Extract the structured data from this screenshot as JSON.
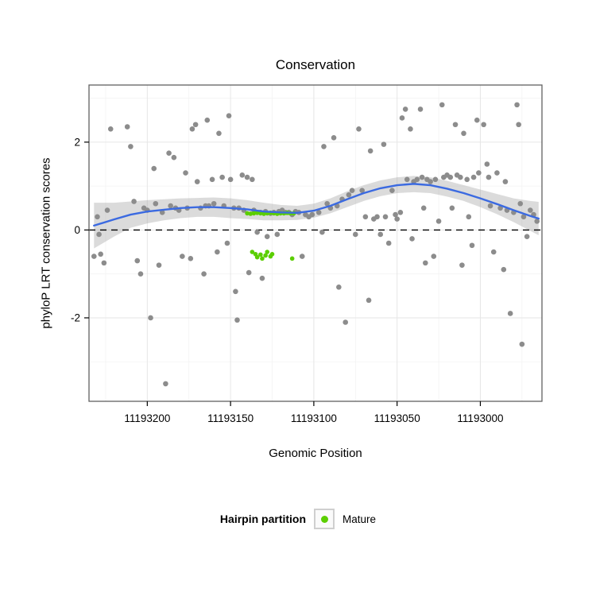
{
  "chart_data": {
    "type": "scatter",
    "title": "Conservation",
    "xlabel": "Genomic Position",
    "ylabel": "phyloP LRT conservation scores",
    "x_axis_reversed": true,
    "x_domain": [
      11193235,
      11192963
    ],
    "y_domain": [
      3.3,
      -3.9
    ],
    "x_ticks": [
      {
        "value": 11193200,
        "label": "11193200"
      },
      {
        "value": 11193150,
        "label": "11193150"
      },
      {
        "value": 11193100,
        "label": "11193100"
      },
      {
        "value": 11193050,
        "label": "11193050"
      },
      {
        "value": 11193000,
        "label": "11193000"
      }
    ],
    "y_ticks": [
      {
        "value": 2,
        "label": "2"
      },
      {
        "value": 0,
        "label": "0"
      },
      {
        "value": -2,
        "label": "-2"
      }
    ],
    "x_minor": [
      11193225,
      11193175,
      11193125,
      11193075,
      11193025,
      11192975
    ],
    "y_minor": [
      3,
      1,
      -1,
      -3
    ],
    "hline_y": 0,
    "grid": true,
    "legend_position": "bottom",
    "colors": {
      "point": "#8c8c8c",
      "mature": "#5bce00",
      "line": "#3b6ae1",
      "ribbon": "#999999",
      "ribbon_opacity": 0.35,
      "grid_major": "#e6e6e6",
      "grid_minor": "#f3f3f3",
      "panel_bg": "#ffffff",
      "border": "#606060",
      "hline": "#000000"
    },
    "points": [
      [
        11193232,
        -0.6
      ],
      [
        11193230,
        0.3
      ],
      [
        11193229,
        -0.1
      ],
      [
        11193228,
        -0.55
      ],
      [
        11193226,
        -0.75
      ],
      [
        11193224,
        0.45
      ],
      [
        11193222,
        2.3
      ],
      [
        11193212,
        2.35
      ],
      [
        11193210,
        1.9
      ],
      [
        11193208,
        0.65
      ],
      [
        11193206,
        -0.7
      ],
      [
        11193204,
        -1.0
      ],
      [
        11193202,
        0.5
      ],
      [
        11193200,
        0.45
      ],
      [
        11193198,
        -2.0
      ],
      [
        11193196,
        1.4
      ],
      [
        11193195,
        0.6
      ],
      [
        11193193,
        -0.8
      ],
      [
        11193191,
        0.4
      ],
      [
        11193189,
        -3.5
      ],
      [
        11193187,
        1.75
      ],
      [
        11193186,
        0.55
      ],
      [
        11193184,
        1.65
      ],
      [
        11193183,
        0.5
      ],
      [
        11193181,
        0.45
      ],
      [
        11193179,
        -0.6
      ],
      [
        11193177,
        1.3
      ],
      [
        11193176,
        0.5
      ],
      [
        11193174,
        -0.65
      ],
      [
        11193173,
        2.3
      ],
      [
        11193171,
        2.4
      ],
      [
        11193170,
        1.1
      ],
      [
        11193168,
        0.5
      ],
      [
        11193166,
        -1.0
      ],
      [
        11193165,
        0.55
      ],
      [
        11193164,
        2.5
      ],
      [
        11193163,
        0.55
      ],
      [
        11193161,
        1.15
      ],
      [
        11193160,
        0.6
      ],
      [
        11193158,
        -0.5
      ],
      [
        11193157,
        2.2
      ],
      [
        11193155,
        1.2
      ],
      [
        11193154,
        0.55
      ],
      [
        11193152,
        -0.3
      ],
      [
        11193151,
        2.6
      ],
      [
        11193150,
        1.15
      ],
      [
        11193148,
        0.5
      ],
      [
        11193147,
        -1.4
      ],
      [
        11193146,
        -2.05
      ],
      [
        11193145,
        0.5
      ],
      [
        11193143,
        1.25
      ],
      [
        11193142,
        0.45
      ],
      [
        11193140,
        1.2
      ],
      [
        11193139,
        -0.97
      ],
      [
        11193137,
        1.15
      ],
      [
        11193136,
        0.45
      ],
      [
        11193134,
        -0.05
      ],
      [
        11193132,
        0.4
      ],
      [
        11193131,
        -1.1
      ],
      [
        11193129,
        0.42
      ],
      [
        11193128,
        -0.15
      ],
      [
        11193126,
        0.38
      ],
      [
        11193124,
        0.4
      ],
      [
        11193122,
        -0.1
      ],
      [
        11193121,
        0.42
      ],
      [
        11193119,
        0.45
      ],
      [
        11193117,
        0.4
      ],
      [
        11193115,
        0.4
      ],
      [
        11193113,
        0.35
      ],
      [
        11193111,
        0.42
      ],
      [
        11193109,
        0.4
      ],
      [
        11193107,
        -0.6
      ],
      [
        11193105,
        0.35
      ],
      [
        11193103,
        0.3
      ],
      [
        11193101,
        0.35
      ],
      [
        11193097,
        0.4
      ],
      [
        11193095,
        -0.05
      ],
      [
        11193094,
        1.9
      ],
      [
        11193092,
        0.6
      ],
      [
        11193090,
        0.5
      ],
      [
        11193088,
        2.1
      ],
      [
        11193086,
        0.55
      ],
      [
        11193085,
        -1.3
      ],
      [
        11193083,
        0.7
      ],
      [
        11193081,
        -2.1
      ],
      [
        11193079,
        0.8
      ],
      [
        11193077,
        0.9
      ],
      [
        11193075,
        -0.1
      ],
      [
        11193073,
        2.3
      ],
      [
        11193071,
        0.9
      ],
      [
        11193069,
        0.3
      ],
      [
        11193067,
        -1.6
      ],
      [
        11193066,
        1.8
      ],
      [
        11193064,
        0.25
      ],
      [
        11193062,
        0.3
      ],
      [
        11193060,
        -0.1
      ],
      [
        11193058,
        1.95
      ],
      [
        11193057,
        0.3
      ],
      [
        11193055,
        -0.3
      ],
      [
        11193053,
        0.9
      ],
      [
        11193051,
        0.35
      ],
      [
        11193050,
        0.25
      ],
      [
        11193048,
        0.4
      ],
      [
        11193047,
        2.55
      ],
      [
        11193045,
        2.75
      ],
      [
        11193044,
        1.15
      ],
      [
        11193042,
        2.3
      ],
      [
        11193041,
        -0.2
      ],
      [
        11193040,
        1.1
      ],
      [
        11193038,
        1.15
      ],
      [
        11193036,
        2.75
      ],
      [
        11193035,
        1.2
      ],
      [
        11193034,
        0.5
      ],
      [
        11193033,
        -0.75
      ],
      [
        11193032,
        1.15
      ],
      [
        11193030,
        1.1
      ],
      [
        11193028,
        -0.6
      ],
      [
        11193027,
        1.15
      ],
      [
        11193025,
        0.2
      ],
      [
        11193023,
        2.85
      ],
      [
        11193022,
        1.2
      ],
      [
        11193020,
        1.25
      ],
      [
        11193018,
        1.2
      ],
      [
        11193017,
        0.5
      ],
      [
        11193015,
        2.4
      ],
      [
        11193014,
        1.25
      ],
      [
        11193012,
        1.2
      ],
      [
        11193011,
        -0.8
      ],
      [
        11193010,
        2.2
      ],
      [
        11193008,
        1.15
      ],
      [
        11193007,
        0.3
      ],
      [
        11193005,
        -0.35
      ],
      [
        11193004,
        1.2
      ],
      [
        11193002,
        2.5
      ],
      [
        11193001,
        1.3
      ],
      [
        11192998,
        2.4
      ],
      [
        11192996,
        1.5
      ],
      [
        11192995,
        1.2
      ],
      [
        11192994,
        0.55
      ],
      [
        11192992,
        -0.5
      ],
      [
        11192990,
        1.3
      ],
      [
        11192988,
        0.5
      ],
      [
        11192986,
        -0.9
      ],
      [
        11192985,
        1.1
      ],
      [
        11192984,
        0.45
      ],
      [
        11192982,
        -1.9
      ],
      [
        11192980,
        0.4
      ],
      [
        11192978,
        2.85
      ],
      [
        11192977,
        2.4
      ],
      [
        11192976,
        0.6
      ],
      [
        11192975,
        -2.6
      ],
      [
        11192974,
        0.3
      ],
      [
        11192972,
        -0.15
      ],
      [
        11192970,
        0.45
      ],
      [
        11192968,
        0.35
      ],
      [
        11192966,
        0.2
      ]
    ],
    "mature_points": [
      [
        11193140,
        0.38
      ],
      [
        11193138,
        0.37
      ],
      [
        11193136,
        0.38
      ],
      [
        11193134,
        0.39
      ],
      [
        11193132,
        0.38
      ],
      [
        11193130,
        0.37
      ],
      [
        11193128,
        0.38
      ],
      [
        11193126,
        0.39
      ],
      [
        11193124,
        0.38
      ],
      [
        11193122,
        0.37
      ],
      [
        11193120,
        0.38
      ],
      [
        11193118,
        0.38
      ],
      [
        11193116,
        0.39
      ],
      [
        11193114,
        0.38
      ],
      [
        11193112,
        0.38
      ],
      [
        11193137,
        -0.5
      ],
      [
        11193135,
        -0.55
      ],
      [
        11193134,
        -0.62
      ],
      [
        11193132,
        -0.56
      ],
      [
        11193131,
        -0.65
      ],
      [
        11193129,
        -0.58
      ],
      [
        11193128,
        -0.5
      ],
      [
        11193126,
        -0.6
      ],
      [
        11193125,
        -0.55
      ],
      [
        11193113,
        -0.65
      ]
    ],
    "smooth": {
      "x": [
        11193232,
        11193220,
        11193210,
        11193200,
        11193190,
        11193180,
        11193170,
        11193160,
        11193150,
        11193140,
        11193130,
        11193120,
        11193110,
        11193100,
        11193090,
        11193080,
        11193070,
        11193060,
        11193050,
        11193040,
        11193030,
        11193020,
        11193010,
        11193000,
        11192990,
        11192980,
        11192970,
        11192965
      ],
      "y": [
        0.1,
        0.24,
        0.35,
        0.42,
        0.46,
        0.5,
        0.52,
        0.52,
        0.5,
        0.47,
        0.42,
        0.4,
        0.39,
        0.44,
        0.55,
        0.7,
        0.84,
        0.95,
        1.02,
        1.05,
        1.02,
        0.94,
        0.84,
        0.72,
        0.59,
        0.45,
        0.32,
        0.26
      ],
      "upper": [
        0.62,
        0.62,
        0.65,
        0.68,
        0.7,
        0.72,
        0.73,
        0.74,
        0.72,
        0.68,
        0.62,
        0.57,
        0.55,
        0.6,
        0.72,
        0.88,
        1.02,
        1.13,
        1.2,
        1.23,
        1.2,
        1.12,
        1.02,
        0.92,
        0.82,
        0.72,
        0.66,
        0.64
      ],
      "lower": [
        -0.42,
        -0.15,
        0.05,
        0.15,
        0.22,
        0.27,
        0.3,
        0.3,
        0.27,
        0.25,
        0.22,
        0.22,
        0.23,
        0.28,
        0.38,
        0.52,
        0.66,
        0.77,
        0.84,
        0.86,
        0.84,
        0.76,
        0.66,
        0.52,
        0.36,
        0.18,
        -0.02,
        -0.12
      ]
    }
  },
  "legend": {
    "title": "Hairpin partition",
    "items": [
      {
        "label": "Mature",
        "color": "#5bce00"
      }
    ]
  }
}
